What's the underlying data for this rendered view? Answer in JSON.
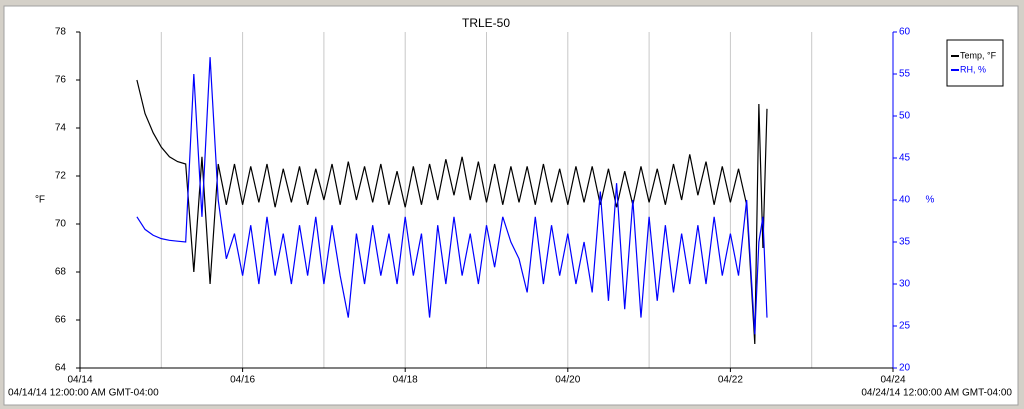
{
  "chart_data": {
    "type": "line",
    "title": "TRLE-50",
    "ylabel": "°F",
    "y2label": "%",
    "x_start_label": "04/14/14 12:00:00 AM GMT-04:00",
    "x_end_label": "04/24/14 12:00:00 AM GMT-04:00",
    "xlim": [
      14,
      24
    ],
    "xticks": [
      {
        "value": 14,
        "label": "04/14"
      },
      {
        "value": 16,
        "label": "04/16"
      },
      {
        "value": 18,
        "label": "04/18"
      },
      {
        "value": 20,
        "label": "04/20"
      },
      {
        "value": 22,
        "label": "04/22"
      },
      {
        "value": 24,
        "label": "04/24"
      }
    ],
    "xminorticks": [
      15,
      17,
      19,
      21,
      23
    ],
    "ylim": [
      64,
      78
    ],
    "yticks": [
      64,
      66,
      68,
      70,
      72,
      74,
      76,
      78
    ],
    "y2lim": [
      20,
      60
    ],
    "y2ticks": [
      20,
      25,
      30,
      35,
      40,
      45,
      50,
      55,
      60
    ],
    "grid": true,
    "legend": "top-right",
    "x": [
      14.7,
      14.8,
      14.9,
      15.0,
      15.1,
      15.2,
      15.3,
      15.4,
      15.5,
      15.6,
      15.7,
      15.8,
      15.9,
      16.0,
      16.1,
      16.2,
      16.3,
      16.4,
      16.5,
      16.6,
      16.7,
      16.8,
      16.9,
      17.0,
      17.1,
      17.2,
      17.3,
      17.4,
      17.5,
      17.6,
      17.7,
      17.8,
      17.9,
      18.0,
      18.1,
      18.2,
      18.3,
      18.4,
      18.5,
      18.6,
      18.7,
      18.8,
      18.9,
      19.0,
      19.1,
      19.2,
      19.3,
      19.4,
      19.5,
      19.6,
      19.7,
      19.8,
      19.9,
      20.0,
      20.1,
      20.2,
      20.3,
      20.4,
      20.5,
      20.6,
      20.7,
      20.8,
      20.9,
      21.0,
      21.1,
      21.2,
      21.3,
      21.4,
      21.5,
      21.6,
      21.7,
      21.8,
      21.9,
      22.0,
      22.1,
      22.2,
      22.3,
      22.35,
      22.4,
      22.45
    ],
    "series": [
      {
        "name": "Temp, °F",
        "color": "#000000",
        "axis": "y",
        "values": [
          76.0,
          74.6,
          73.8,
          73.2,
          72.8,
          72.6,
          72.5,
          68.0,
          72.8,
          67.5,
          72.5,
          70.8,
          72.5,
          70.8,
          72.4,
          70.9,
          72.5,
          70.7,
          72.3,
          70.9,
          72.4,
          70.8,
          72.3,
          71.0,
          72.5,
          70.8,
          72.6,
          71.0,
          72.4,
          70.9,
          72.5,
          70.8,
          72.2,
          70.7,
          72.4,
          70.8,
          72.5,
          71.0,
          72.7,
          71.2,
          72.8,
          71.0,
          72.6,
          70.9,
          72.5,
          70.8,
          72.4,
          70.9,
          72.4,
          70.8,
          72.5,
          70.9,
          72.3,
          70.8,
          72.4,
          70.9,
          72.4,
          70.8,
          72.3,
          70.7,
          72.2,
          70.8,
          72.4,
          70.9,
          72.3,
          70.8,
          72.5,
          71.0,
          72.9,
          71.2,
          72.6,
          70.8,
          72.4,
          70.9,
          72.3,
          70.8,
          65.0,
          75.0,
          69.0,
          74.8
        ]
      },
      {
        "name": "RH, %",
        "color": "#0000ff",
        "axis": "y2",
        "values": [
          38,
          36.5,
          35.8,
          35.4,
          35.2,
          35.1,
          35.0,
          55,
          38,
          57,
          40,
          33,
          36,
          31,
          37,
          30,
          38,
          31,
          36,
          30,
          37,
          31,
          38,
          30,
          37,
          31,
          26,
          36,
          30,
          37,
          31,
          36,
          30,
          38,
          31,
          36,
          26,
          37,
          30,
          38,
          31,
          36,
          30,
          37,
          32,
          38,
          35,
          33,
          29,
          38,
          30,
          37,
          31,
          36,
          30,
          35,
          29,
          41,
          28,
          42,
          27,
          40,
          26,
          38,
          28,
          37,
          29,
          36,
          30,
          37,
          30,
          38,
          31,
          36,
          31,
          40,
          24,
          35,
          38,
          26
        ]
      }
    ]
  }
}
